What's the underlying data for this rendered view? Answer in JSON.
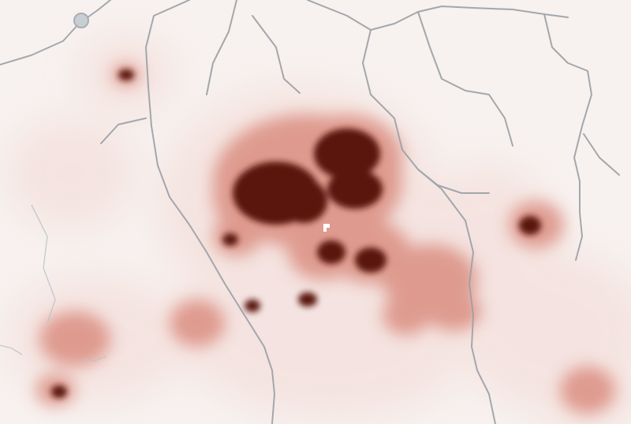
{
  "map": {
    "type": "heatmap-overlay",
    "palette": {
      "background": "#f7f1ef",
      "low": "#f3d9d4",
      "mid": "#d9887a",
      "high": "#a9372b",
      "max": "#5a1209",
      "boundary_color": "#9aa0a6",
      "marker_color": "#ffffff"
    },
    "layers": [
      "base-land",
      "density-heat",
      "admin-boundaries",
      "rivers",
      "location-marker"
    ],
    "labels": []
  }
}
